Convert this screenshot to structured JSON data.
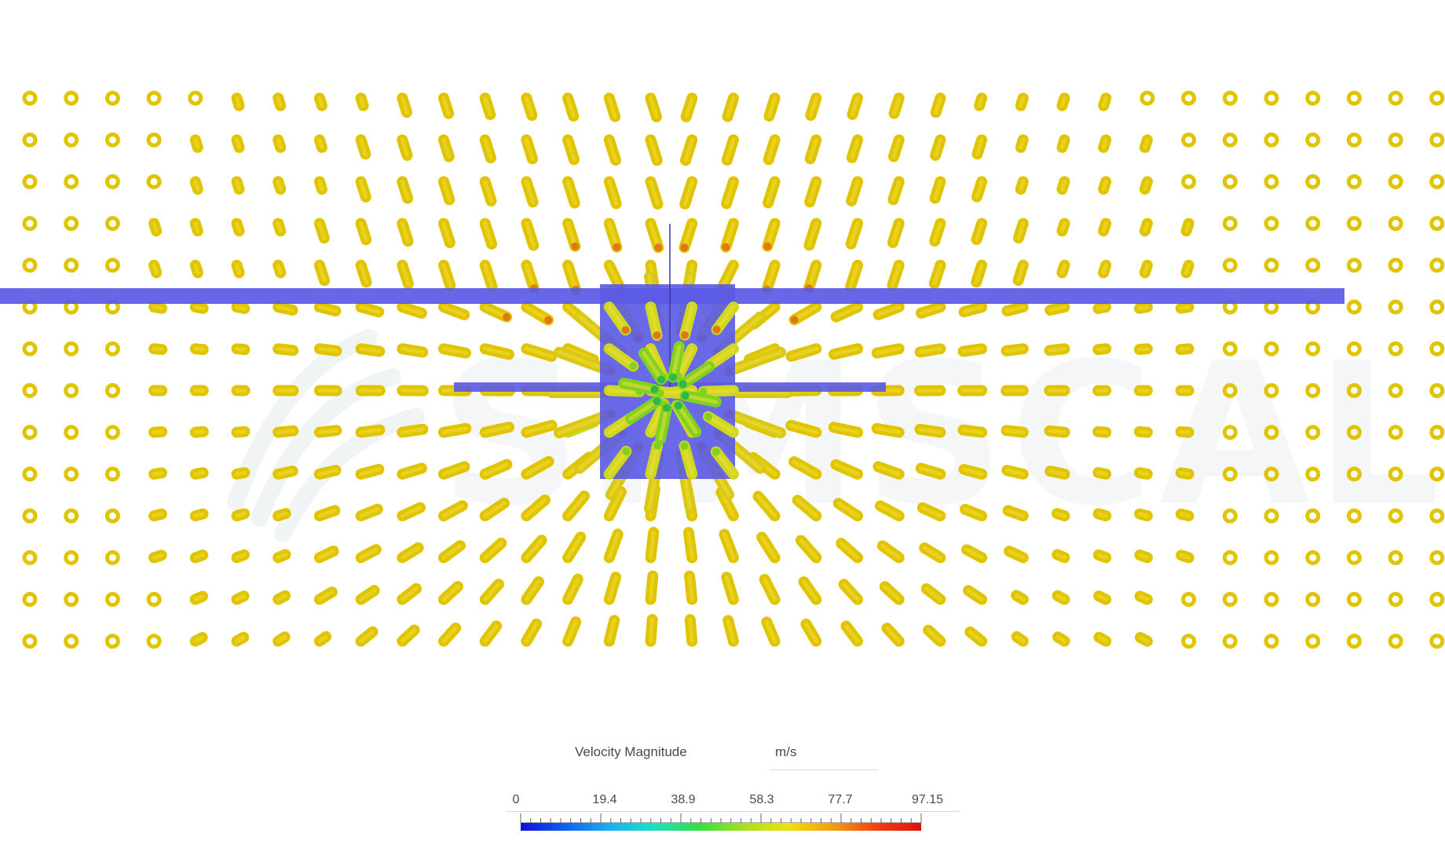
{
  "visualization": {
    "watermark": "SIMSCALE",
    "geometry_color": "#5a5ae6",
    "glyph_colors": {
      "low": "#2a2ae0",
      "mid": "#7ed321",
      "high": "#e0c400",
      "max": "#d42a1c"
    }
  },
  "legend": {
    "title": "Velocity Magnitude",
    "unit": "m/s",
    "ticks": [
      "0",
      "19.4",
      "38.9",
      "58.3",
      "77.7",
      "97.15"
    ],
    "gradient": [
      "#1010d8",
      "#1060f0",
      "#18b0f0",
      "#20e0c0",
      "#30e040",
      "#a8e020",
      "#f0e010",
      "#f0a010",
      "#f04010",
      "#e01010"
    ]
  }
}
